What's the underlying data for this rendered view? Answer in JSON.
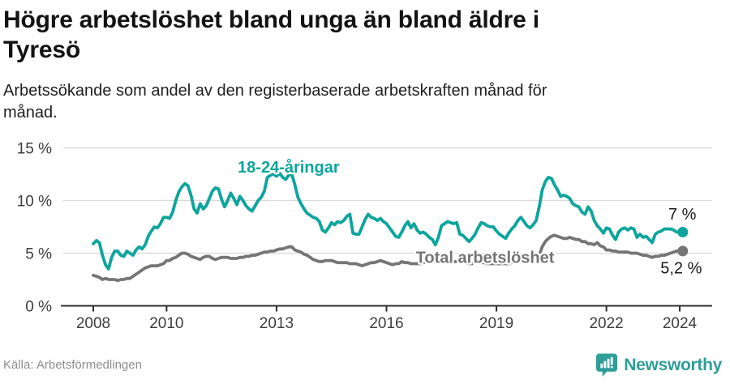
{
  "header": {
    "title": "Högre arbetslöshet bland unga än bland äldre i Tyresö",
    "title_lines": [
      "Högre arbetslöshet bland unga än bland äldre i",
      "Tyresö"
    ],
    "subtitle": "Arbetssökande som andel av den registerbaserade arbetskraften månad för månad.",
    "subtitle_lines": [
      "Arbetssökande som andel av den registerbaserade arbetskraften månad för",
      "månad."
    ]
  },
  "footer": {
    "source": "Källa: Arbetsförmedlingen",
    "brand": "Newsworthy"
  },
  "colors": {
    "young": "#0ca59d",
    "total": "#757575",
    "grid": "#d9d9d9",
    "axis": "#2e2e2e",
    "tick_text": "#3d3d3d",
    "ink": "#1a1a1a",
    "logo": "#2f9d98"
  },
  "chart_data": {
    "type": "line",
    "title": "Högre arbetslöshet bland unga än bland äldre i Tyresö",
    "subtitle": "Arbetssökande som andel av den registerbaserade arbetskraften månad för månad.",
    "x_start_year": 2008,
    "x_monthly": true,
    "x_ticks": [
      2008,
      2010,
      2013,
      2016,
      2019,
      2022,
      2024
    ],
    "x_tick_labels": [
      "2008",
      "2010",
      "2013",
      "2016",
      "2019",
      "2022",
      "2024"
    ],
    "y_ticks": [
      0,
      5,
      10,
      15
    ],
    "y_tick_labels": [
      "0 %",
      "5 %",
      "10 %",
      "15 %"
    ],
    "ylim": [
      0,
      15.8
    ],
    "grid": true,
    "legend_position": "inline-annotations",
    "series": [
      {
        "name": "18-24-åringar",
        "color_key": "young",
        "end_label": "7 %",
        "end_value": 7.0,
        "values": [
          5.9,
          6.2,
          6.0,
          4.8,
          3.9,
          3.5,
          4.6,
          5.2,
          5.2,
          4.8,
          4.7,
          5.2,
          5.0,
          4.8,
          5.3,
          5.6,
          5.4,
          5.8,
          6.6,
          7.1,
          7.5,
          7.4,
          7.8,
          8.4,
          8.4,
          8.3,
          8.9,
          10.0,
          10.8,
          11.3,
          11.6,
          11.4,
          10.5,
          9.2,
          8.8,
          9.7,
          9.2,
          9.5,
          10.2,
          10.9,
          11.2,
          11.1,
          10.1,
          9.4,
          10.0,
          10.7,
          10.2,
          9.6,
          10.4,
          10.0,
          9.5,
          9.2,
          9.0,
          9.5,
          10.0,
          10.3,
          10.9,
          12.2,
          12.4,
          12.5,
          12.3,
          12.6,
          12.2,
          12.0,
          12.4,
          12.5,
          11.5,
          10.3,
          9.7,
          9.2,
          8.8,
          8.6,
          8.4,
          8.3,
          8.0,
          7.2,
          7.0,
          7.4,
          7.9,
          7.7,
          8.0,
          7.9,
          8.1,
          8.5,
          8.7,
          6.9,
          6.8,
          6.8,
          7.5,
          8.2,
          8.7,
          8.4,
          8.3,
          8.1,
          8.3,
          8.0,
          7.8,
          7.4,
          7.0,
          6.6,
          6.5,
          7.0,
          7.6,
          8.0,
          7.4,
          7.8,
          7.2,
          6.9,
          7.0,
          6.8,
          6.5,
          6.3,
          5.8,
          6.5,
          7.6,
          7.8,
          8.0,
          7.9,
          7.8,
          7.9,
          6.8,
          6.7,
          6.4,
          6.1,
          6.4,
          6.8,
          7.4,
          7.9,
          7.8,
          7.6,
          7.5,
          7.5,
          7.1,
          6.8,
          6.6,
          6.4,
          6.9,
          7.3,
          7.6,
          8.1,
          8.4,
          8.0,
          7.6,
          7.4,
          7.7,
          8.1,
          9.4,
          11.0,
          11.8,
          12.2,
          12.1,
          11.5,
          11.0,
          10.4,
          10.5,
          10.4,
          10.2,
          9.7,
          9.5,
          9.4,
          8.9,
          8.7,
          9.4,
          9.0,
          8.1,
          7.6,
          7.3,
          6.9,
          7.4,
          7.3,
          6.7,
          6.3,
          7.0,
          7.3,
          7.4,
          7.2,
          7.4,
          7.3,
          6.5,
          6.8,
          6.5,
          6.6,
          6.3,
          6.0,
          6.8,
          7.0,
          7.1,
          7.3,
          7.3,
          7.3,
          7.2,
          7.0,
          7.0,
          7.0
        ]
      },
      {
        "name": "Total arbetslöshet",
        "color_key": "total",
        "end_label": "5,2 %",
        "end_value": 5.2,
        "values": [
          2.9,
          2.8,
          2.7,
          2.5,
          2.6,
          2.5,
          2.5,
          2.5,
          2.4,
          2.5,
          2.5,
          2.6,
          2.6,
          2.8,
          3.0,
          3.2,
          3.4,
          3.6,
          3.7,
          3.8,
          3.8,
          3.8,
          3.9,
          4.0,
          4.3,
          4.3,
          4.5,
          4.6,
          4.8,
          5.0,
          5.0,
          4.9,
          4.7,
          4.6,
          4.5,
          4.4,
          4.6,
          4.7,
          4.7,
          4.5,
          4.4,
          4.5,
          4.6,
          4.6,
          4.6,
          4.5,
          4.5,
          4.5,
          4.6,
          4.6,
          4.7,
          4.7,
          4.8,
          4.8,
          4.9,
          5.0,
          5.1,
          5.1,
          5.2,
          5.2,
          5.3,
          5.4,
          5.4,
          5.5,
          5.6,
          5.6,
          5.3,
          5.2,
          5.1,
          4.9,
          4.8,
          4.6,
          4.4,
          4.3,
          4.2,
          4.2,
          4.3,
          4.3,
          4.3,
          4.2,
          4.1,
          4.1,
          4.1,
          4.1,
          4.0,
          4.0,
          4.0,
          3.9,
          3.8,
          3.9,
          4.0,
          4.1,
          4.1,
          4.2,
          4.3,
          4.2,
          4.1,
          4.0,
          3.9,
          4.0,
          4.0,
          4.2,
          4.1,
          4.1,
          4.0,
          4.0,
          4.0,
          4.0,
          4.1,
          4.2,
          4.2,
          4.2,
          4.2,
          4.2,
          4.3,
          4.3,
          4.3,
          4.3,
          4.2,
          4.2,
          4.2,
          4.1,
          4.1,
          4.0,
          4.0,
          4.1,
          4.1,
          4.1,
          4.1,
          4.0,
          4.0,
          4.0,
          4.0,
          4.0,
          4.0,
          4.0,
          4.0,
          4.1,
          4.2,
          4.2,
          4.3,
          4.3,
          4.4,
          4.4,
          4.4,
          4.5,
          4.8,
          5.6,
          6.1,
          6.4,
          6.6,
          6.7,
          6.6,
          6.5,
          6.4,
          6.4,
          6.5,
          6.4,
          6.3,
          6.3,
          6.1,
          6.1,
          5.9,
          5.9,
          5.8,
          6.0,
          5.7,
          5.6,
          5.3,
          5.3,
          5.2,
          5.2,
          5.1,
          5.1,
          5.1,
          5.1,
          5.0,
          5.0,
          5.0,
          4.9,
          4.8,
          4.8,
          4.7,
          4.6,
          4.7,
          4.7,
          4.8,
          4.8,
          4.9,
          5.0,
          5.1,
          5.2,
          5.2,
          5.2
        ]
      }
    ],
    "annotations": [
      {
        "text": "18-24-åringar",
        "year": 2013.33,
        "pct": 13.19,
        "color": "young",
        "bold": true
      },
      {
        "text": "Total arbetslöshet",
        "year": 2018.69,
        "pct": 4.62,
        "color": "total",
        "bold": true
      },
      {
        "text": "7 %",
        "year": 2024.07,
        "pct": 8.73,
        "color": "ink",
        "bold": false
      },
      {
        "text": "5,2 %",
        "year": 2024.04,
        "pct": 3.63,
        "color": "ink",
        "bold": false
      }
    ]
  }
}
